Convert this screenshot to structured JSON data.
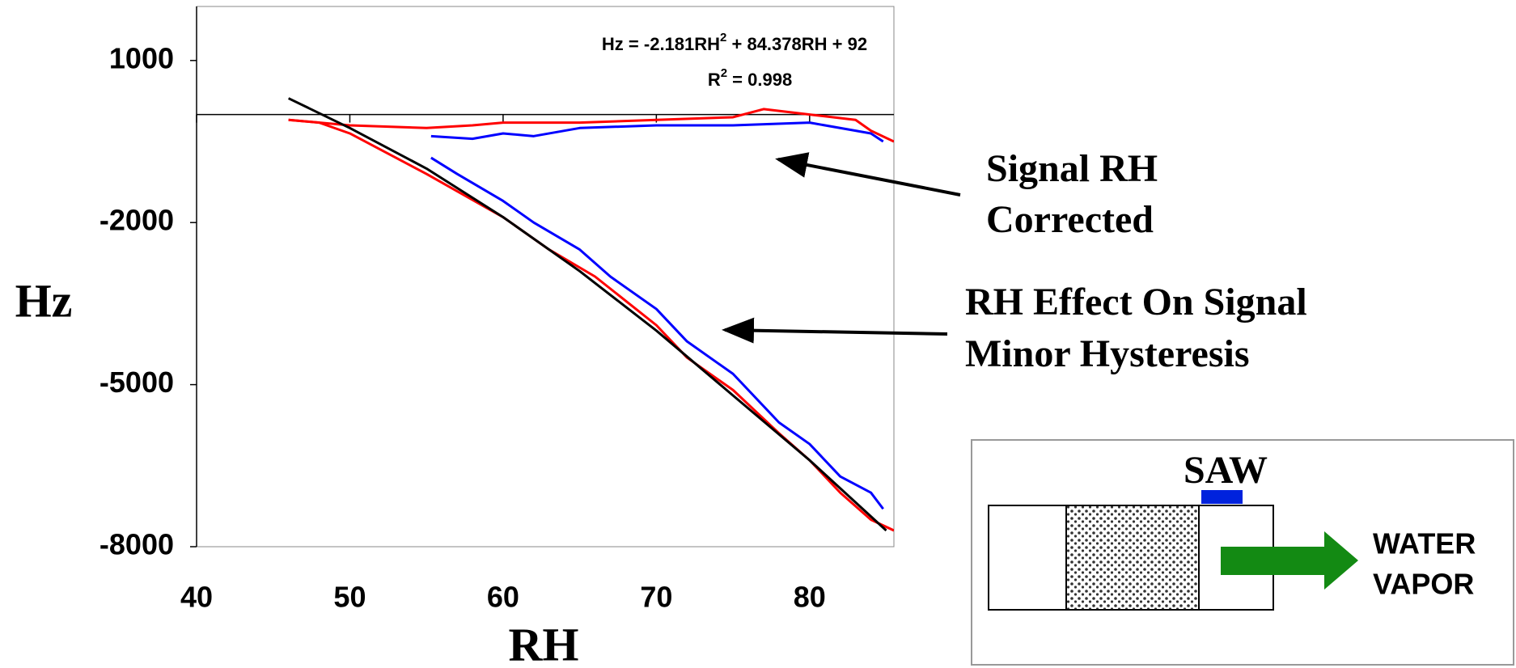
{
  "chart_data": {
    "type": "line",
    "x_label": "RH",
    "y_label": "Hz",
    "xlim": [
      40,
      85.5
    ],
    "ylim": [
      -8000,
      2000
    ],
    "xticks": [
      40,
      50,
      60,
      70,
      80
    ],
    "yticks": [
      -8000,
      -5000,
      -2000,
      1000
    ],
    "equation": [
      "Hz = -2.181RH",
      "2",
      " + 84.378RH + 92"
    ],
    "r_squared": [
      "R",
      "2",
      " = 0.998"
    ],
    "series": [
      {
        "color": "#ff0000",
        "x": [
          46,
          48,
          50,
          55,
          60,
          63,
          66,
          70,
          72,
          75,
          78,
          80,
          82,
          84,
          85.5
        ],
        "values": [
          -100,
          -150,
          -350,
          -1100,
          -1900,
          -2500,
          -3000,
          -3900,
          -4500,
          -5100,
          -5900,
          -6400,
          -7000,
          -7500,
          -7700
        ]
      },
      {
        "color": "#0000ff",
        "x": [
          55.3,
          57,
          60,
          62,
          65,
          67,
          70,
          72,
          75,
          78,
          80,
          82,
          84,
          84.8
        ],
        "values": [
          -800,
          -1100,
          -1600,
          -2000,
          -2500,
          -3000,
          -3600,
          -4200,
          -4800,
          -5700,
          -6100,
          -6700,
          -7000,
          -7300
        ]
      },
      {
        "color": "#ff0000",
        "x": [
          46,
          50,
          55,
          58,
          60,
          65,
          70,
          75,
          77,
          80,
          83,
          84,
          85.5
        ],
        "values": [
          -100,
          -200,
          -250,
          -200,
          -150,
          -150,
          -100,
          -50,
          100,
          0,
          -100,
          -300,
          -500
        ]
      },
      {
        "color": "#0000ff",
        "x": [
          55.3,
          58,
          60,
          62,
          65,
          70,
          75,
          80,
          83,
          84,
          84.8
        ],
        "values": [
          -400,
          -450,
          -350,
          -400,
          -250,
          -200,
          -200,
          -150,
          -300,
          -350,
          -500
        ]
      },
      {
        "color": "#000000",
        "x": [
          46,
          50,
          55,
          60,
          65,
          70,
          75,
          80,
          85
        ],
        "values": [
          300,
          -250,
          -1000,
          -1900,
          -2900,
          -4000,
          -5200,
          -6400,
          -7700
        ]
      }
    ],
    "annotations": [
      [
        "Signal RH",
        "Corrected"
      ],
      [
        "RH Effect On Signal",
        "Minor Hysteresis"
      ]
    ],
    "diagram": {
      "sensor": "SAW",
      "flow": [
        "WATER",
        "VAPOR"
      ]
    }
  }
}
